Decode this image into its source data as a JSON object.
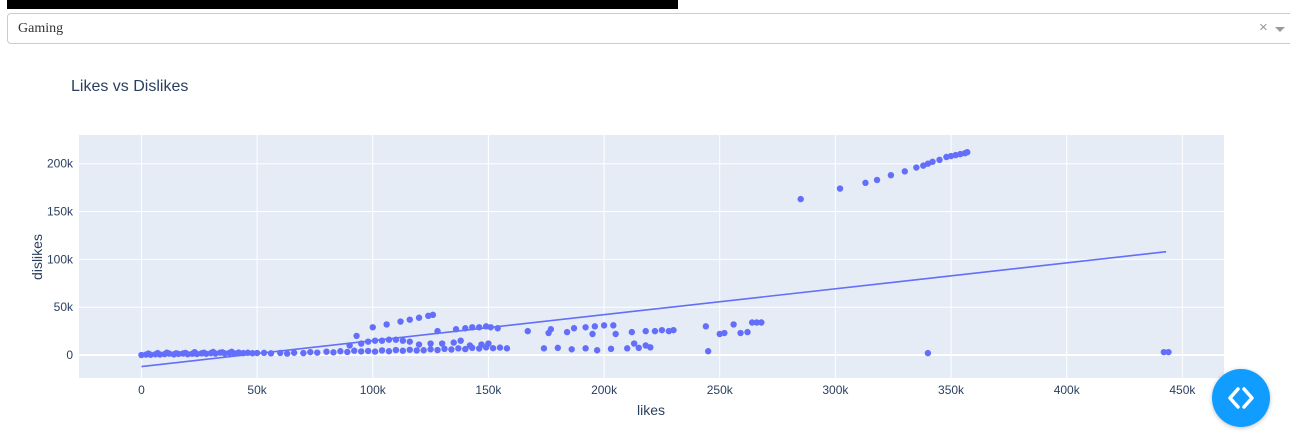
{
  "dropdown": {
    "selected": "Gaming",
    "clear_icon": "×",
    "arrow_icon": "chevron-down-icon"
  },
  "fab": {
    "icon": "code-icon",
    "color": "#119dff"
  },
  "chart_data": {
    "type": "scatter",
    "title": "Likes vs Dislikes",
    "xlabel": "likes",
    "ylabel": "dislikes",
    "xlim": [
      -27000,
      468000
    ],
    "ylim": [
      -24000,
      230000
    ],
    "xticks": [
      0,
      50000,
      100000,
      150000,
      200000,
      250000,
      300000,
      350000,
      400000,
      450000
    ],
    "xtick_labels": [
      "0",
      "50k",
      "100k",
      "150k",
      "200k",
      "250k",
      "300k",
      "350k",
      "400k",
      "450k"
    ],
    "yticks": [
      0,
      50000,
      100000,
      150000,
      200000
    ],
    "ytick_labels": [
      "0",
      "50k",
      "100k",
      "150k",
      "200k"
    ],
    "grid": true,
    "colors": {
      "marker": "#636efa",
      "plot_bg": "#e5ecf6",
      "grid": "#ffffff",
      "text": "#2a3f5f"
    },
    "series": [
      {
        "mode": "markers",
        "points": [
          [
            0,
            0
          ],
          [
            2000,
            500
          ],
          [
            4000,
            300
          ],
          [
            6000,
            800
          ],
          [
            8000,
            600
          ],
          [
            10000,
            1000
          ],
          [
            12000,
            1500
          ],
          [
            14000,
            700
          ],
          [
            16000,
            1200
          ],
          [
            18000,
            1600
          ],
          [
            20000,
            900
          ],
          [
            22000,
            1400
          ],
          [
            24000,
            1100
          ],
          [
            26000,
            1800
          ],
          [
            28000,
            1300
          ],
          [
            30000,
            2000
          ],
          [
            32000,
            1500
          ],
          [
            34000,
            2500
          ],
          [
            36000,
            1700
          ],
          [
            38000,
            2200
          ],
          [
            40000,
            1800
          ],
          [
            42000,
            2600
          ],
          [
            44000,
            2000
          ],
          [
            46000,
            2400
          ],
          [
            48000,
            1900
          ],
          [
            50000,
            2100
          ],
          [
            53000,
            2300
          ],
          [
            56000,
            1800
          ],
          [
            60000,
            2200
          ],
          [
            63000,
            1500
          ],
          [
            66000,
            2400
          ],
          [
            70000,
            2000
          ],
          [
            73000,
            3000
          ],
          [
            76000,
            2500
          ],
          [
            80000,
            3500
          ],
          [
            83000,
            2800
          ],
          [
            86000,
            4000
          ],
          [
            89000,
            3200
          ],
          [
            92000,
            4500
          ],
          [
            95000,
            3800
          ],
          [
            98000,
            4200
          ],
          [
            101000,
            3600
          ],
          [
            104000,
            4800
          ],
          [
            107000,
            4000
          ],
          [
            110000,
            5200
          ],
          [
            113000,
            4500
          ],
          [
            116000,
            5500
          ],
          [
            119000,
            4800
          ],
          [
            122000,
            5000
          ],
          [
            125000,
            6000
          ],
          [
            128000,
            5200
          ],
          [
            131000,
            6500
          ],
          [
            134000,
            5800
          ],
          [
            137000,
            7000
          ],
          [
            140000,
            6200
          ],
          [
            143000,
            7500
          ],
          [
            146000,
            6800
          ],
          [
            149000,
            8000
          ],
          [
            152000,
            7200
          ],
          [
            155000,
            7800
          ],
          [
            158000,
            7000
          ],
          [
            174000,
            7000
          ],
          [
            180000,
            7500
          ],
          [
            186000,
            6000
          ],
          [
            192000,
            7000
          ],
          [
            197000,
            5000
          ],
          [
            203000,
            6500
          ],
          [
            210000,
            7000
          ],
          [
            215000,
            7500
          ],
          [
            220000,
            8000
          ],
          [
            3000,
            1500
          ],
          [
            7000,
            2000
          ],
          [
            11000,
            2500
          ],
          [
            15000,
            1800
          ],
          [
            19000,
            2200
          ],
          [
            23000,
            3000
          ],
          [
            27000,
            2500
          ],
          [
            31000,
            3200
          ],
          [
            35000,
            2800
          ],
          [
            39000,
            3400
          ],
          [
            90000,
            10000
          ],
          [
            93000,
            20000
          ],
          [
            100000,
            29000
          ],
          [
            106000,
            32000
          ],
          [
            112000,
            35000
          ],
          [
            116000,
            37000
          ],
          [
            120000,
            39000
          ],
          [
            124000,
            41000
          ],
          [
            126000,
            42000
          ],
          [
            128000,
            25000
          ],
          [
            136000,
            27000
          ],
          [
            140000,
            28000
          ],
          [
            143000,
            29000
          ],
          [
            146000,
            29000
          ],
          [
            149000,
            30000
          ],
          [
            151000,
            29000
          ],
          [
            154000,
            28000
          ],
          [
            95000,
            12000
          ],
          [
            98000,
            14000
          ],
          [
            101000,
            15000
          ],
          [
            104000,
            15000
          ],
          [
            107000,
            16000
          ],
          [
            110000,
            16000
          ],
          [
            113000,
            15000
          ],
          [
            116000,
            14000
          ],
          [
            120000,
            11000
          ],
          [
            125000,
            12000
          ],
          [
            130000,
            12000
          ],
          [
            135000,
            13000
          ],
          [
            138000,
            15000
          ],
          [
            142000,
            10000
          ],
          [
            147000,
            11000
          ],
          [
            150000,
            12000
          ],
          [
            167000,
            25000
          ],
          [
            177000,
            27000
          ],
          [
            187000,
            28000
          ],
          [
            192000,
            29000
          ],
          [
            196000,
            30000
          ],
          [
            200000,
            31000
          ],
          [
            204000,
            31000
          ],
          [
            205000,
            22000
          ],
          [
            212000,
            24000
          ],
          [
            218000,
            25000
          ],
          [
            222000,
            25000
          ],
          [
            225000,
            26000
          ],
          [
            228000,
            25000
          ],
          [
            230000,
            26000
          ],
          [
            176000,
            23000
          ],
          [
            184000,
            24000
          ],
          [
            195000,
            22000
          ],
          [
            213000,
            12000
          ],
          [
            218000,
            10000
          ],
          [
            244000,
            30000
          ],
          [
            252000,
            23000
          ],
          [
            256000,
            32000
          ],
          [
            259000,
            23000
          ],
          [
            262000,
            24000
          ],
          [
            264000,
            34000
          ],
          [
            266000,
            34000
          ],
          [
            268000,
            34000
          ],
          [
            245000,
            4000
          ],
          [
            250000,
            22000
          ],
          [
            285000,
            163000
          ],
          [
            302000,
            174000
          ],
          [
            313000,
            180000
          ],
          [
            318000,
            183000
          ],
          [
            324000,
            188000
          ],
          [
            330000,
            192000
          ],
          [
            335000,
            196000
          ],
          [
            338000,
            198000
          ],
          [
            340000,
            200000
          ],
          [
            342000,
            202000
          ],
          [
            345000,
            204000
          ],
          [
            348000,
            207000
          ],
          [
            350000,
            208000
          ],
          [
            352000,
            209000
          ],
          [
            354000,
            210000
          ],
          [
            356000,
            211000
          ],
          [
            357000,
            212000
          ],
          [
            340000,
            2000
          ],
          [
            442000,
            3000
          ],
          [
            444000,
            3000
          ]
        ]
      },
      {
        "mode": "lines",
        "points": [
          [
            0,
            -12000
          ],
          [
            443000,
            108000
          ]
        ]
      }
    ]
  }
}
